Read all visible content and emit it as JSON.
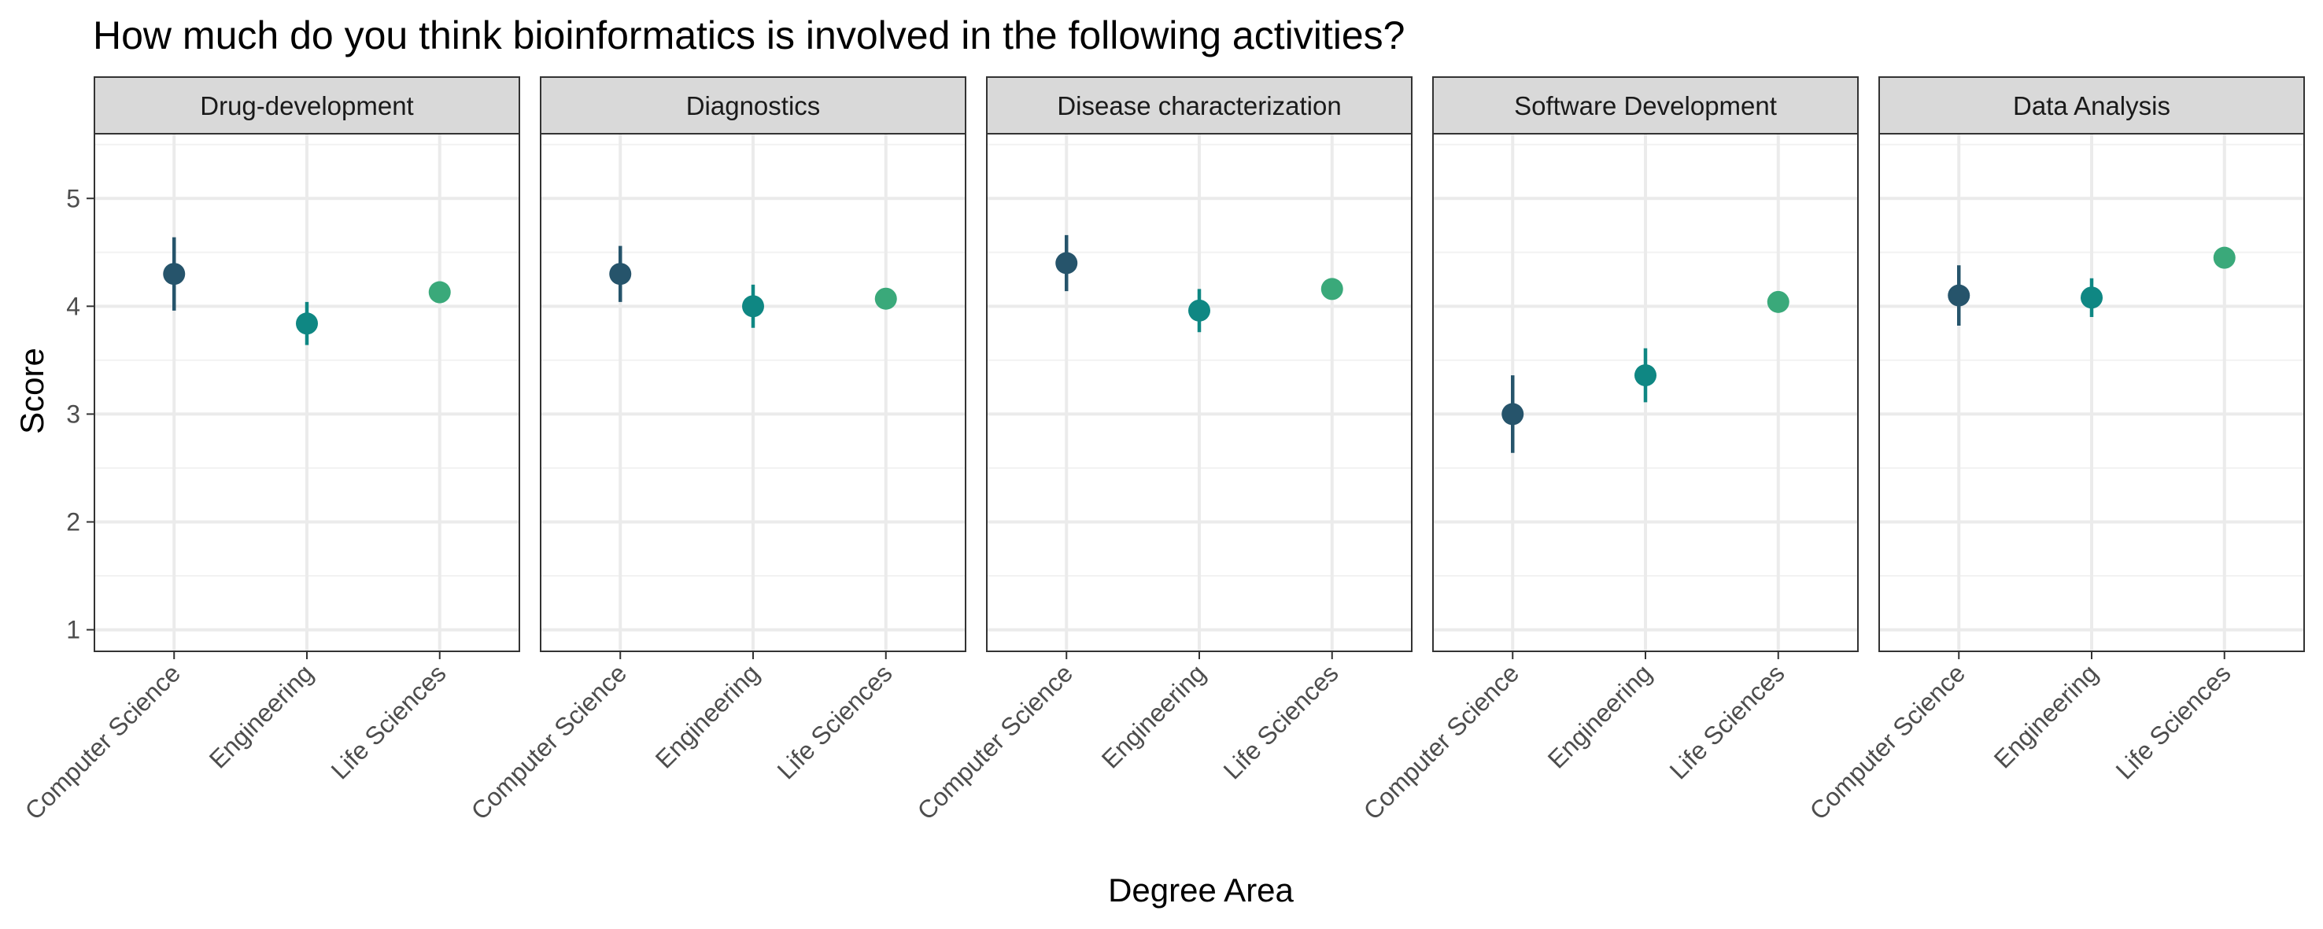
{
  "chart_data": {
    "type": "scatter",
    "title": "How much do you think bioinformatics is involved in the following activities?",
    "xlabel": "Degree Area",
    "ylabel": "Score",
    "categories": [
      "Computer Science",
      "Engineering",
      "Life Sciences"
    ],
    "ylim": [
      0.8,
      5.6
    ],
    "yticks": [
      1,
      2,
      3,
      4,
      5
    ],
    "grid": true,
    "colors": {
      "Computer Science": "#26546b",
      "Engineering": "#0f8783",
      "Life Sciences": "#3aa97a"
    },
    "facets": [
      {
        "name": "Drug-development",
        "points": [
          {
            "category": "Computer Science",
            "y": 4.3,
            "ymin": 3.96,
            "ymax": 4.64
          },
          {
            "category": "Engineering",
            "y": 3.84,
            "ymin": 3.64,
            "ymax": 4.04
          },
          {
            "category": "Life Sciences",
            "y": 4.13,
            "ymin": 4.03,
            "ymax": 4.23
          }
        ]
      },
      {
        "name": "Diagnostics",
        "points": [
          {
            "category": "Computer Science",
            "y": 4.3,
            "ymin": 4.04,
            "ymax": 4.56
          },
          {
            "category": "Engineering",
            "y": 4.0,
            "ymin": 3.8,
            "ymax": 4.2
          },
          {
            "category": "Life Sciences",
            "y": 4.07,
            "ymin": 3.98,
            "ymax": 4.15
          }
        ]
      },
      {
        "name": "Disease characterization",
        "points": [
          {
            "category": "Computer Science",
            "y": 4.4,
            "ymin": 4.14,
            "ymax": 4.66
          },
          {
            "category": "Engineering",
            "y": 3.96,
            "ymin": 3.76,
            "ymax": 4.16
          },
          {
            "category": "Life Sciences",
            "y": 4.16,
            "ymin": 4.07,
            "ymax": 4.25
          }
        ]
      },
      {
        "name": "Software Development",
        "points": [
          {
            "category": "Computer Science",
            "y": 3.0,
            "ymin": 2.64,
            "ymax": 3.36
          },
          {
            "category": "Engineering",
            "y": 3.36,
            "ymin": 3.11,
            "ymax": 3.61
          },
          {
            "category": "Life Sciences",
            "y": 4.04,
            "ymin": 3.94,
            "ymax": 4.14
          }
        ]
      },
      {
        "name": "Data Analysis",
        "points": [
          {
            "category": "Computer Science",
            "y": 4.1,
            "ymin": 3.82,
            "ymax": 4.38
          },
          {
            "category": "Engineering",
            "y": 4.08,
            "ymin": 3.9,
            "ymax": 4.26
          },
          {
            "category": "Life Sciences",
            "y": 4.45,
            "ymin": 4.39,
            "ymax": 4.51
          }
        ]
      }
    ]
  }
}
